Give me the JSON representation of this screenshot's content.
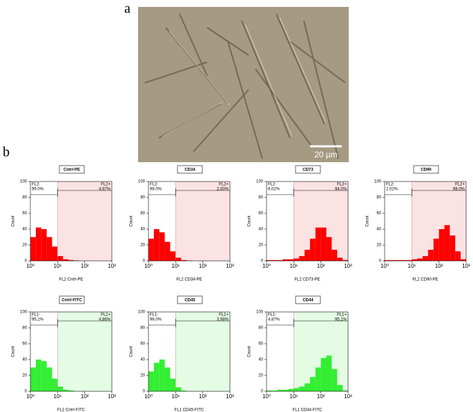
{
  "figure": {
    "panel_labels": [
      "a",
      "b"
    ],
    "scale_bar": "20 µm"
  },
  "chart_data": [
    {
      "type": "histogram",
      "title": "Cntrl-PE",
      "xlabel": "FL2 Cntrl-PE",
      "ylabel": "Count",
      "xscale": "log",
      "xlim": [
        1,
        1000
      ],
      "xticks": [
        {
          "value": 1,
          "label": "10⁰"
        },
        {
          "value": 10,
          "label": "10¹"
        },
        {
          "value": 100,
          "label": "10²"
        },
        {
          "value": 1000,
          "label": "10³"
        }
      ],
      "ylim": [
        0,
        100
      ],
      "yticks": [
        0,
        20,
        40,
        60,
        80,
        100
      ],
      "color": "#ff0000",
      "gate_color": "#fbe3e3",
      "gate_x": 10,
      "bins": [
        1,
        1.585,
        2.512,
        3.981,
        6.31,
        10,
        15.85,
        25.12,
        39.81,
        63.1,
        100,
        158.5,
        251.2,
        398.1,
        631,
        1000
      ],
      "counts": [
        30,
        42,
        40,
        30,
        18,
        6,
        2,
        1,
        0.5,
        0,
        0,
        0,
        0,
        0,
        0
      ],
      "gates": {
        "names": [
          "FL2-",
          "FL2+"
        ],
        "values": [
          95.0,
          4.97
        ],
        "value_labels": [
          "95.0%",
          "4.97%"
        ]
      }
    },
    {
      "type": "histogram",
      "title": "CD34",
      "xlabel": "FL2 CD34-PE",
      "ylabel": "Count",
      "xscale": "log",
      "xlim": [
        1,
        1000
      ],
      "xticks": [
        {
          "value": 1,
          "label": "10⁰"
        },
        {
          "value": 10,
          "label": "10¹"
        },
        {
          "value": 100,
          "label": "10²"
        },
        {
          "value": 1000,
          "label": "10³"
        }
      ],
      "ylim": [
        0,
        100
      ],
      "yticks": [
        0,
        20,
        40,
        60,
        80,
        100
      ],
      "color": "#ff0000",
      "gate_color": "#fbe3e3",
      "gate_x": 10,
      "bins": [
        1,
        1.585,
        2.512,
        3.981,
        6.31,
        10,
        15.85,
        25.12,
        39.81,
        63.1,
        100,
        158.5,
        251.2,
        398.1,
        631,
        1000
      ],
      "counts": [
        28,
        40,
        36,
        24,
        12,
        4,
        1,
        0.5,
        0,
        0,
        0,
        0,
        0,
        0,
        0
      ],
      "gates": {
        "names": [
          "FL2-",
          "FL2+"
        ],
        "values": [
          98.0,
          2.0
        ],
        "value_labels": [
          "98.0%",
          "2.00%"
        ]
      }
    },
    {
      "type": "histogram",
      "title": "CD73",
      "xlabel": "FL2 CD73-PE",
      "ylabel": "Count",
      "xscale": "log",
      "xlim": [
        1,
        1000
      ],
      "xticks": [
        {
          "value": 1,
          "label": "10⁰"
        },
        {
          "value": 10,
          "label": "10¹"
        },
        {
          "value": 100,
          "label": "10²"
        },
        {
          "value": 1000,
          "label": "10³"
        }
      ],
      "ylim": [
        0,
        100
      ],
      "yticks": [
        0,
        20,
        40,
        60,
        80,
        100
      ],
      "color": "#ff0000",
      "gate_color": "#fbe3e3",
      "gate_x": 10,
      "bins": [
        1,
        1.585,
        2.512,
        3.981,
        6.31,
        10,
        15.85,
        25.12,
        39.81,
        63.1,
        100,
        158.5,
        251.2,
        398.1,
        631,
        1000
      ],
      "counts": [
        1,
        1,
        1,
        2,
        2,
        3,
        6,
        14,
        28,
        42,
        42,
        30,
        14,
        4,
        1
      ],
      "gates": {
        "names": [
          "FL2-",
          "FL2+"
        ],
        "values": [
          6.02,
          94.0
        ],
        "value_labels": [
          "6.02%",
          "94.0%"
        ]
      }
    },
    {
      "type": "histogram",
      "title": "CD90",
      "xlabel": "FL2 CD90-PE",
      "ylabel": "Count",
      "xscale": "log",
      "xlim": [
        1,
        1000
      ],
      "xticks": [
        {
          "value": 1,
          "label": "10⁰"
        },
        {
          "value": 10,
          "label": "10¹"
        },
        {
          "value": 100,
          "label": "10²"
        },
        {
          "value": 1000,
          "label": "10³"
        }
      ],
      "ylim": [
        0,
        100
      ],
      "yticks": [
        0,
        20,
        40,
        60,
        80,
        100
      ],
      "color": "#ff0000",
      "gate_color": "#fbe3e3",
      "gate_x": 10,
      "bins": [
        1,
        1.585,
        2.512,
        3.981,
        6.31,
        10,
        15.85,
        25.12,
        39.81,
        63.1,
        100,
        158.5,
        251.2,
        398.1,
        631,
        1000
      ],
      "counts": [
        1,
        1,
        1,
        1,
        1,
        2,
        3,
        6,
        14,
        28,
        40,
        45,
        32,
        12,
        2
      ],
      "gates": {
        "names": [
          "FL2-",
          "FL2+"
        ],
        "values": [
          2.02,
          98.0
        ],
        "value_labels": [
          "2.02%",
          "98.0%"
        ]
      }
    },
    {
      "type": "histogram",
      "title": "Cntrl-FITC",
      "xlabel": "FL1 Cntrl-FITC",
      "ylabel": "Count",
      "xscale": "log",
      "xlim": [
        1,
        1000
      ],
      "xticks": [
        {
          "value": 1,
          "label": "10⁰"
        },
        {
          "value": 10,
          "label": "10¹"
        },
        {
          "value": 100,
          "label": "10²"
        },
        {
          "value": 1000,
          "label": "10³"
        }
      ],
      "ylim": [
        0,
        100
      ],
      "yticks": [
        0,
        20,
        40,
        60,
        80,
        100
      ],
      "color": "#33ee33",
      "gate_color": "#e4fbe4",
      "gate_x": 10,
      "bins": [
        1,
        1.585,
        2.512,
        3.981,
        6.31,
        10,
        15.85,
        25.12,
        39.81,
        63.1,
        100,
        158.5,
        251.2,
        398.1,
        631,
        1000
      ],
      "counts": [
        30,
        40,
        38,
        30,
        16,
        6,
        2,
        1,
        0,
        0,
        0,
        0,
        0,
        0,
        0
      ],
      "gates": {
        "names": [
          "FL1-",
          "FL1+"
        ],
        "values": [
          95.1,
          4.86
        ],
        "value_labels": [
          "95.1%",
          "4.86%"
        ]
      }
    },
    {
      "type": "histogram",
      "title": "CD45",
      "xlabel": "FL1 CD45-FITC",
      "ylabel": "Count",
      "xscale": "log",
      "xlim": [
        1,
        1000
      ],
      "xticks": [
        {
          "value": 1,
          "label": "10⁰"
        },
        {
          "value": 10,
          "label": "10¹"
        },
        {
          "value": 100,
          "label": "10²"
        },
        {
          "value": 1000,
          "label": "10³"
        }
      ],
      "ylim": [
        0,
        100
      ],
      "yticks": [
        0,
        20,
        40,
        60,
        80,
        100
      ],
      "color": "#33ee33",
      "gate_color": "#e4fbe4",
      "gate_x": 10,
      "bins": [
        1,
        1.585,
        2.512,
        3.981,
        6.31,
        10,
        15.85,
        25.12,
        39.81,
        63.1,
        100,
        158.5,
        251.2,
        398.1,
        631,
        1000
      ],
      "counts": [
        25,
        36,
        40,
        30,
        16,
        5,
        1,
        0,
        0,
        0,
        0,
        0,
        0,
        0,
        0
      ],
      "gates": {
        "names": [
          "FL1-",
          "FL1+"
        ],
        "values": [
          96.0,
          3.98
        ],
        "value_labels": [
          "96.0%",
          "3.98%"
        ]
      }
    },
    {
      "type": "histogram",
      "title": "CD44",
      "xlabel": "FL1 CD44-FITC",
      "ylabel": "Count",
      "xscale": "log",
      "xlim": [
        1,
        1000
      ],
      "xticks": [
        {
          "value": 1,
          "label": "10⁰"
        },
        {
          "value": 10,
          "label": "10¹"
        },
        {
          "value": 100,
          "label": "10²"
        },
        {
          "value": 1000,
          "label": "10³"
        }
      ],
      "ylim": [
        0,
        100
      ],
      "yticks": [
        0,
        20,
        40,
        60,
        80,
        100
      ],
      "color": "#33ee33",
      "gate_color": "#e4fbe4",
      "gate_x": 10,
      "bins": [
        1,
        1.585,
        2.512,
        3.981,
        6.31,
        10,
        15.85,
        25.12,
        39.81,
        63.1,
        100,
        158.5,
        251.2,
        398.1,
        631,
        1000
      ],
      "counts": [
        1,
        1,
        2,
        2,
        3,
        4,
        6,
        10,
        18,
        30,
        42,
        45,
        28,
        8,
        1
      ],
      "gates": {
        "names": [
          "FL1-",
          "FL1+"
        ],
        "values": [
          4.87,
          95.1
        ],
        "value_labels": [
          "4.87%",
          "95.1%"
        ]
      }
    }
  ]
}
